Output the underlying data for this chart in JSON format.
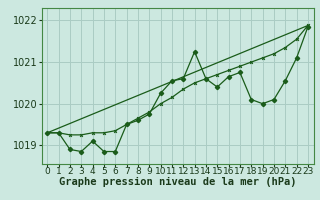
{
  "bg_color": "#cce8e0",
  "plot_bg": "#cce8e0",
  "grid_color": "#aaccc4",
  "line_color": "#1a5c1a",
  "marker_color": "#1a5c1a",
  "xlabel": "Graphe pression niveau de la mer (hPa)",
  "xlabel_fontsize": 7.5,
  "tick_fontsize": 6.5,
  "ytick_fontsize": 7,
  "xlim": [
    -0.5,
    23.5
  ],
  "ylim": [
    1018.55,
    1022.3
  ],
  "yticks": [
    1019,
    1020,
    1021,
    1022
  ],
  "xticks": [
    0,
    1,
    2,
    3,
    4,
    5,
    6,
    7,
    8,
    9,
    10,
    11,
    12,
    13,
    14,
    15,
    16,
    17,
    18,
    19,
    20,
    21,
    22,
    23
  ],
  "line1_x": [
    0,
    1,
    2,
    3,
    4,
    5,
    6,
    7,
    8,
    9,
    10,
    11,
    12,
    13,
    14,
    15,
    16,
    17,
    18,
    19,
    20,
    21,
    22,
    23
  ],
  "line1_y": [
    1019.3,
    1019.3,
    1018.9,
    1018.85,
    1019.1,
    1018.85,
    1018.85,
    1019.5,
    1019.6,
    1019.75,
    1020.25,
    1020.55,
    1020.6,
    1021.25,
    1020.6,
    1020.4,
    1020.65,
    1020.75,
    1020.1,
    1020.0,
    1020.1,
    1020.55,
    1021.1,
    1021.85
  ],
  "line2_x": [
    0,
    1,
    2,
    3,
    4,
    5,
    6,
    7,
    8,
    9,
    10,
    11,
    12,
    13,
    14,
    15,
    16,
    17,
    18,
    19,
    20,
    21,
    22,
    23
  ],
  "line2_y": [
    1019.3,
    1019.3,
    1019.25,
    1019.25,
    1019.3,
    1019.3,
    1019.35,
    1019.5,
    1019.65,
    1019.8,
    1020.0,
    1020.15,
    1020.35,
    1020.5,
    1020.6,
    1020.7,
    1020.8,
    1020.9,
    1021.0,
    1021.1,
    1021.2,
    1021.35,
    1021.55,
    1021.88
  ],
  "line3_x": [
    0,
    23
  ],
  "line3_y": [
    1019.3,
    1021.88
  ]
}
